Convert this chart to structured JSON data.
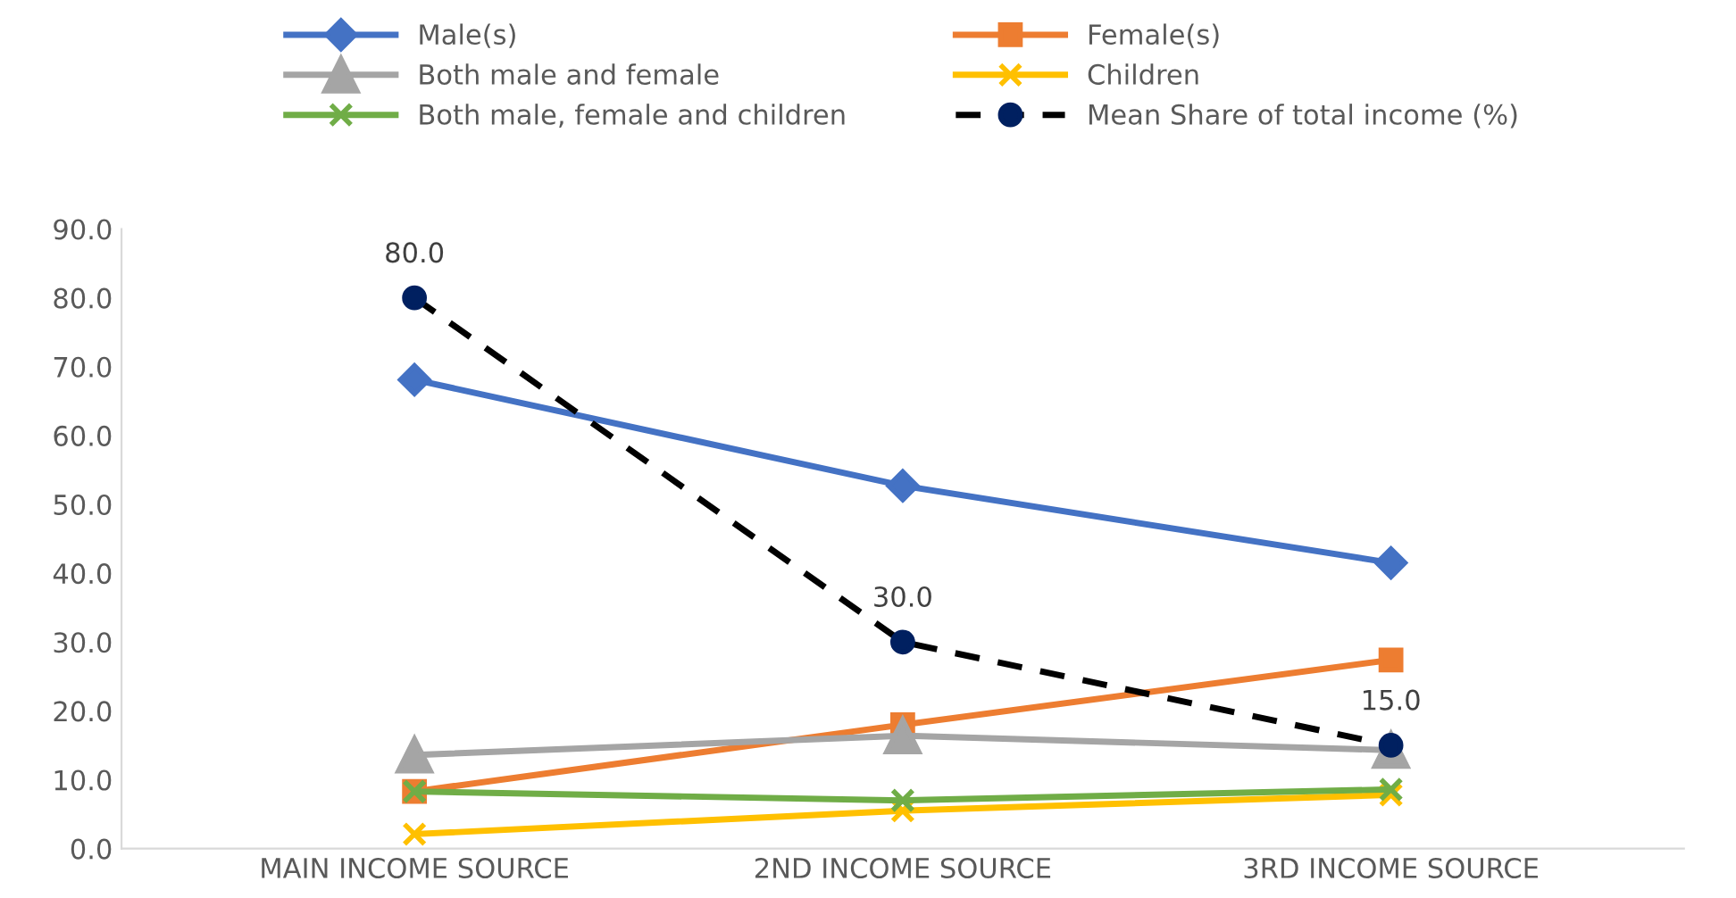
{
  "chart_data": {
    "type": "line",
    "categories": [
      "MAIN INCOME SOURCE",
      "2ND INCOME SOURCE",
      "3RD INCOME SOURCE"
    ],
    "series": [
      {
        "name": "Male(s)",
        "color": "#4472c4",
        "marker": "diamond",
        "values": [
          68.1,
          52.7,
          41.5
        ]
      },
      {
        "name": "Female(s)",
        "color": "#ed7d31",
        "marker": "square",
        "values": [
          8.3,
          18.0,
          27.4
        ]
      },
      {
        "name": "Both male and female",
        "color": "#a5a5a5",
        "marker": "triangle",
        "values": [
          13.6,
          16.4,
          14.3
        ]
      },
      {
        "name": "Children",
        "color": "#ffc000",
        "marker": "cross",
        "values": [
          2.1,
          5.5,
          7.8
        ]
      },
      {
        "name": "Both male, female and children",
        "color": "#70ad47",
        "marker": "cross",
        "values": [
          8.3,
          7.0,
          8.6
        ]
      },
      {
        "name": "Mean Share of total income (%)",
        "color": "#000000",
        "marker": "circle",
        "line_style": "dashed",
        "values": [
          80.0,
          30.0,
          15.0
        ],
        "value_labels": [
          "80.0",
          "30.0",
          "15.0"
        ]
      }
    ],
    "ylim": [
      0,
      90
    ],
    "yticks": [
      {
        "value": 0,
        "label": "0.0"
      },
      {
        "value": 10,
        "label": "10.0"
      },
      {
        "value": 20,
        "label": "20.0"
      },
      {
        "value": 30,
        "label": "30.0"
      },
      {
        "value": 40,
        "label": "40.0"
      },
      {
        "value": 50,
        "label": "50.0"
      },
      {
        "value": 60,
        "label": "60.0"
      },
      {
        "value": 70,
        "label": "70.0"
      },
      {
        "value": 80,
        "label": "80.0"
      },
      {
        "value": 90,
        "label": "90.0"
      }
    ],
    "grid": false,
    "legend": "top"
  }
}
